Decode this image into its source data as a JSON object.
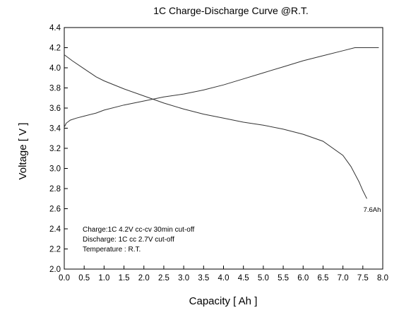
{
  "chart_data": {
    "type": "line",
    "title": "1C Charge-Discharge Curve @R.T.",
    "xlabel": "Capacity [ Ah ]",
    "ylabel": "Voltage [ V ]",
    "xlim": [
      0,
      8.0
    ],
    "ylim": [
      2.0,
      4.4
    ],
    "xticks": [
      "0.0",
      "0.5",
      "1.0",
      "1.5",
      "2.0",
      "2.5",
      "3.0",
      "3.5",
      "4.0",
      "4.5",
      "5.0",
      "5.5",
      "6.0",
      "6.5",
      "7.0",
      "7.5",
      "8.0"
    ],
    "yticks": [
      "2.0",
      "2.2",
      "2.4",
      "2.6",
      "2.8",
      "3.0",
      "3.2",
      "3.4",
      "3.6",
      "3.8",
      "4.0",
      "4.2",
      "4.4"
    ],
    "grid": false,
    "series": [
      {
        "name": "Charge",
        "x": [
          0.0,
          0.05,
          0.15,
          0.3,
          0.5,
          0.8,
          1.0,
          1.5,
          2.0,
          2.5,
          3.0,
          3.5,
          4.0,
          4.5,
          5.0,
          5.5,
          6.0,
          6.5,
          7.0,
          7.3,
          7.5,
          7.9
        ],
        "y": [
          3.41,
          3.45,
          3.48,
          3.5,
          3.52,
          3.55,
          3.58,
          3.63,
          3.67,
          3.71,
          3.74,
          3.78,
          3.83,
          3.89,
          3.95,
          4.01,
          4.07,
          4.12,
          4.17,
          4.2,
          4.2,
          4.2
        ]
      },
      {
        "name": "Discharge",
        "x": [
          0.0,
          0.2,
          0.5,
          0.8,
          1.0,
          1.5,
          2.0,
          2.5,
          3.0,
          3.5,
          4.0,
          4.5,
          5.0,
          5.5,
          6.0,
          6.5,
          7.0,
          7.2,
          7.4,
          7.5,
          7.6
        ],
        "y": [
          4.13,
          4.07,
          3.99,
          3.91,
          3.87,
          3.79,
          3.72,
          3.65,
          3.59,
          3.54,
          3.5,
          3.46,
          3.43,
          3.39,
          3.34,
          3.27,
          3.13,
          3.02,
          2.87,
          2.78,
          2.7
        ]
      }
    ],
    "annotations": [
      "Charge:1C 4.2V  cc-cv 30min cut-off",
      "Discharge: 1C cc 2.7V cut-off",
      "Temperature : R.T."
    ],
    "end_label": "7.6Ah"
  }
}
